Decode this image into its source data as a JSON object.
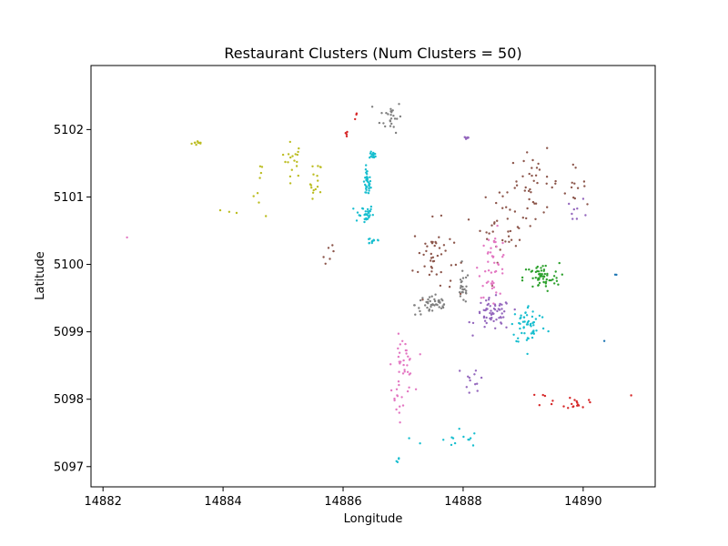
{
  "chart_data": {
    "type": "scatter",
    "title": "Restaurant Clusters (Num Clusters = 50)",
    "xlabel": "Longitude",
    "ylabel": "Latitude",
    "xlim": [
      14881.8,
      14891.2
    ],
    "ylim": [
      5096.7,
      5102.95
    ],
    "xticks": [
      14882,
      14884,
      14886,
      14888,
      14890
    ],
    "yticks": [
      5097,
      5098,
      5099,
      5100,
      5101,
      5102
    ],
    "grid": false,
    "legend": "none",
    "colors": {
      "olive": "#bcbd22",
      "cyan": "#17becf",
      "pink": "#e377c2",
      "gray": "#7f7f7f",
      "brown": "#8c564b",
      "purple": "#9467bd",
      "green": "#2ca02c",
      "red": "#d62728",
      "blue": "#1f77b4"
    },
    "clusters": [
      {
        "color": "pink",
        "n": 1,
        "x": [
          14882.4,
          14882.4
        ],
        "y": [
          5100.4,
          5100.33
        ],
        "spread": [
          0.02,
          0.02
        ]
      },
      {
        "color": "olive",
        "n": 10,
        "x": [
          14883.6
        ],
        "y": [
          5101.8
        ],
        "spread": [
          0.1,
          0.03
        ]
      },
      {
        "color": "olive",
        "n": 18,
        "x": [
          14885.15
        ],
        "y": [
          5101.55
        ],
        "spread": [
          0.15,
          0.22
        ]
      },
      {
        "color": "olive",
        "n": 16,
        "x": [
          14885.55
        ],
        "y": [
          5101.2
        ],
        "spread": [
          0.08,
          0.28
        ]
      },
      {
        "color": "olive",
        "n": 8,
        "x": [
          14884.65
        ],
        "y": [
          5101.2
        ],
        "spread": [
          0.15,
          0.4
        ]
      },
      {
        "color": "olive",
        "n": 3,
        "x": [
          14884.2
        ],
        "y": [
          5100.78
        ],
        "spread": [
          0.2,
          0.03
        ]
      },
      {
        "color": "red",
        "n": 4,
        "x": [
          14886.05
        ],
        "y": [
          5101.92
        ],
        "spread": [
          0.02,
          0.05
        ]
      },
      {
        "color": "red",
        "n": 3,
        "x": [
          14886.2
        ],
        "y": [
          5102.2
        ],
        "spread": [
          0.05,
          0.05
        ]
      },
      {
        "color": "cyan",
        "n": 35,
        "x": [
          14886.4
        ],
        "y": [
          5101.2
        ],
        "spread": [
          0.05,
          0.18
        ]
      },
      {
        "color": "cyan",
        "n": 15,
        "x": [
          14886.5
        ],
        "y": [
          5101.62
        ],
        "spread": [
          0.05,
          0.04
        ]
      },
      {
        "color": "cyan",
        "n": 30,
        "x": [
          14886.35
        ],
        "y": [
          5100.75
        ],
        "spread": [
          0.13,
          0.12
        ]
      },
      {
        "color": "cyan",
        "n": 12,
        "x": [
          14886.5
        ],
        "y": [
          5100.35
        ],
        "spread": [
          0.12,
          0.05
        ]
      },
      {
        "color": "gray",
        "n": 25,
        "x": [
          14886.8
        ],
        "y": [
          5102.2
        ],
        "spread": [
          0.15,
          0.2
        ]
      },
      {
        "color": "brown",
        "n": 6,
        "x": [
          14885.8
        ],
        "y": [
          5100.2
        ],
        "spread": [
          0.15,
          0.15
        ]
      },
      {
        "color": "brown",
        "n": 45,
        "x": [
          14887.5
        ],
        "y": [
          5100.1
        ],
        "spread": [
          0.28,
          0.45
        ]
      },
      {
        "color": "brown",
        "n": 40,
        "x": [
          14888.7
        ],
        "y": [
          5100.6
        ],
        "spread": [
          0.35,
          0.45
        ]
      },
      {
        "color": "brown",
        "n": 35,
        "x": [
          14889.2
        ],
        "y": [
          5101.2
        ],
        "spread": [
          0.35,
          0.4
        ]
      },
      {
        "color": "brown",
        "n": 12,
        "x": [
          14889.8
        ],
        "y": [
          5101.2
        ],
        "spread": [
          0.2,
          0.2
        ]
      },
      {
        "color": "gray",
        "n": 45,
        "x": [
          14887.5
        ],
        "y": [
          5099.4
        ],
        "spread": [
          0.25,
          0.13
        ]
      },
      {
        "color": "gray",
        "n": 25,
        "x": [
          14888.0
        ],
        "y": [
          5099.65
        ],
        "spread": [
          0.08,
          0.2
        ]
      },
      {
        "color": "purple",
        "n": 8,
        "x": [
          14888.05
        ],
        "y": [
          5101.87
        ],
        "spread": [
          0.04,
          0.02
        ]
      },
      {
        "color": "purple",
        "n": 60,
        "x": [
          14888.5
        ],
        "y": [
          5099.25
        ],
        "spread": [
          0.25,
          0.2
        ]
      },
      {
        "color": "purple",
        "n": 12,
        "x": [
          14888.2
        ],
        "y": [
          5098.3
        ],
        "spread": [
          0.15,
          0.2
        ]
      },
      {
        "color": "purple",
        "n": 8,
        "x": [
          14889.9
        ],
        "y": [
          5100.8
        ],
        "spread": [
          0.15,
          0.15
        ]
      },
      {
        "color": "pink",
        "n": 45,
        "x": [
          14888.5
        ],
        "y": [
          5100.0
        ],
        "spread": [
          0.2,
          0.4
        ]
      },
      {
        "color": "pink",
        "n": 35,
        "x": [
          14887.0
        ],
        "y": [
          5098.5
        ],
        "spread": [
          0.15,
          0.35
        ]
      },
      {
        "color": "pink",
        "n": 10,
        "x": [
          14886.9
        ],
        "y": [
          5098.0
        ],
        "spread": [
          0.1,
          0.15
        ]
      },
      {
        "color": "green",
        "n": 60,
        "x": [
          14889.3
        ],
        "y": [
          5099.8
        ],
        "spread": [
          0.25,
          0.18
        ]
      },
      {
        "color": "cyan",
        "n": 55,
        "x": [
          14889.1
        ],
        "y": [
          5099.1
        ],
        "spread": [
          0.25,
          0.25
        ]
      },
      {
        "color": "cyan",
        "n": 14,
        "x": [
          14887.8
        ],
        "y": [
          5097.4
        ],
        "spread": [
          0.4,
          0.15
        ]
      },
      {
        "color": "cyan",
        "n": 4,
        "x": [
          14886.9
        ],
        "y": [
          5097.1
        ],
        "spread": [
          0.05,
          0.05
        ]
      },
      {
        "color": "red",
        "n": 15,
        "x": [
          14889.9
        ],
        "y": [
          5097.95
        ],
        "spread": [
          0.15,
          0.08
        ]
      },
      {
        "color": "red",
        "n": 6,
        "x": [
          14889.5
        ],
        "y": [
          5098.0
        ],
        "spread": [
          0.2,
          0.1
        ]
      },
      {
        "color": "red",
        "n": 1,
        "x": [
          14890.8
        ],
        "y": [
          5098.05
        ],
        "spread": [
          0.01,
          0.01
        ]
      },
      {
        "color": "blue",
        "n": 2,
        "x": [
          14890.55
        ],
        "y": [
          5099.87
        ],
        "spread": [
          0.02,
          0.02
        ]
      },
      {
        "color": "blue",
        "n": 1,
        "x": [
          14890.35
        ],
        "y": [
          5098.87
        ],
        "spread": [
          0.01,
          0.01
        ]
      }
    ]
  }
}
